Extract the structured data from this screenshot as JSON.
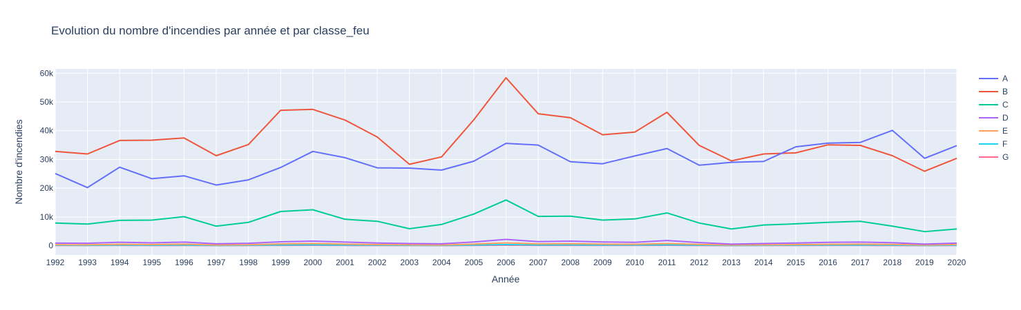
{
  "chart_data": {
    "type": "line",
    "title": "Evolution du nombre d'incendies par année et par classe_feu",
    "xlabel": "Année",
    "ylabel": "Nombre d'incendies",
    "x": [
      1992,
      1993,
      1994,
      1995,
      1996,
      1997,
      1998,
      1999,
      2000,
      2001,
      2002,
      2003,
      2004,
      2005,
      2006,
      2007,
      2008,
      2009,
      2010,
      2011,
      2012,
      2013,
      2014,
      2015,
      2016,
      2017,
      2018,
      2019,
      2020
    ],
    "y_ticks": [
      0,
      10000,
      20000,
      30000,
      40000,
      50000,
      60000
    ],
    "y_tick_labels": [
      "0",
      "10k",
      "20k",
      "30k",
      "40k",
      "50k",
      "60k"
    ],
    "ylim": [
      -3200,
      61500
    ],
    "grid": true,
    "legend_position": "right",
    "plot_background": "#e5ecf6",
    "series": [
      {
        "name": "A",
        "color": "#636efa",
        "values": [
          25100,
          20200,
          27300,
          23300,
          24300,
          21100,
          22900,
          27200,
          32800,
          30600,
          27100,
          27000,
          26300,
          29400,
          35600,
          35000,
          29200,
          28500,
          31200,
          33800,
          28000,
          29000,
          29300,
          34400,
          35700,
          35900,
          40100,
          30400,
          34800
        ]
      },
      {
        "name": "B",
        "color": "#ef553b",
        "values": [
          32800,
          31900,
          36600,
          36700,
          37500,
          31300,
          35200,
          47100,
          47400,
          43700,
          37800,
          28300,
          30900,
          43800,
          58400,
          45900,
          44500,
          38600,
          39500,
          46400,
          34900,
          29500,
          31900,
          32300,
          35100,
          34900,
          31300,
          25900,
          30400
        ]
      },
      {
        "name": "C",
        "color": "#00cc96",
        "values": [
          7900,
          7500,
          8800,
          8900,
          10100,
          6800,
          8100,
          11900,
          12500,
          9200,
          8500,
          5900,
          7400,
          11000,
          15900,
          10200,
          10300,
          8900,
          9300,
          11400,
          7900,
          5800,
          7200,
          7600,
          8100,
          8500,
          6800,
          4900,
          5800
        ]
      },
      {
        "name": "D",
        "color": "#ab63fa",
        "values": [
          900,
          850,
          1200,
          1000,
          1250,
          650,
          850,
          1350,
          1600,
          1250,
          950,
          750,
          650,
          1300,
          2200,
          1400,
          1600,
          1300,
          1150,
          1800,
          1100,
          550,
          750,
          950,
          1150,
          1250,
          1050,
          550,
          900
        ]
      },
      {
        "name": "E",
        "color": "#ffa15a",
        "values": [
          350,
          300,
          500,
          400,
          550,
          250,
          350,
          600,
          750,
          550,
          400,
          300,
          250,
          550,
          1000,
          600,
          700,
          550,
          500,
          750,
          450,
          250,
          300,
          400,
          500,
          550,
          450,
          250,
          400
        ]
      },
      {
        "name": "F",
        "color": "#19d3f3",
        "values": [
          150,
          120,
          200,
          160,
          220,
          100,
          150,
          250,
          300,
          220,
          170,
          120,
          100,
          230,
          400,
          250,
          280,
          220,
          200,
          300,
          180,
          100,
          130,
          170,
          200,
          230,
          180,
          100,
          160
        ]
      },
      {
        "name": "G",
        "color": "#ff6692",
        "values": [
          60,
          50,
          80,
          60,
          90,
          40,
          60,
          100,
          120,
          90,
          70,
          50,
          40,
          90,
          160,
          100,
          110,
          90,
          80,
          120,
          70,
          40,
          50,
          70,
          80,
          90,
          70,
          40,
          60
        ]
      }
    ]
  }
}
